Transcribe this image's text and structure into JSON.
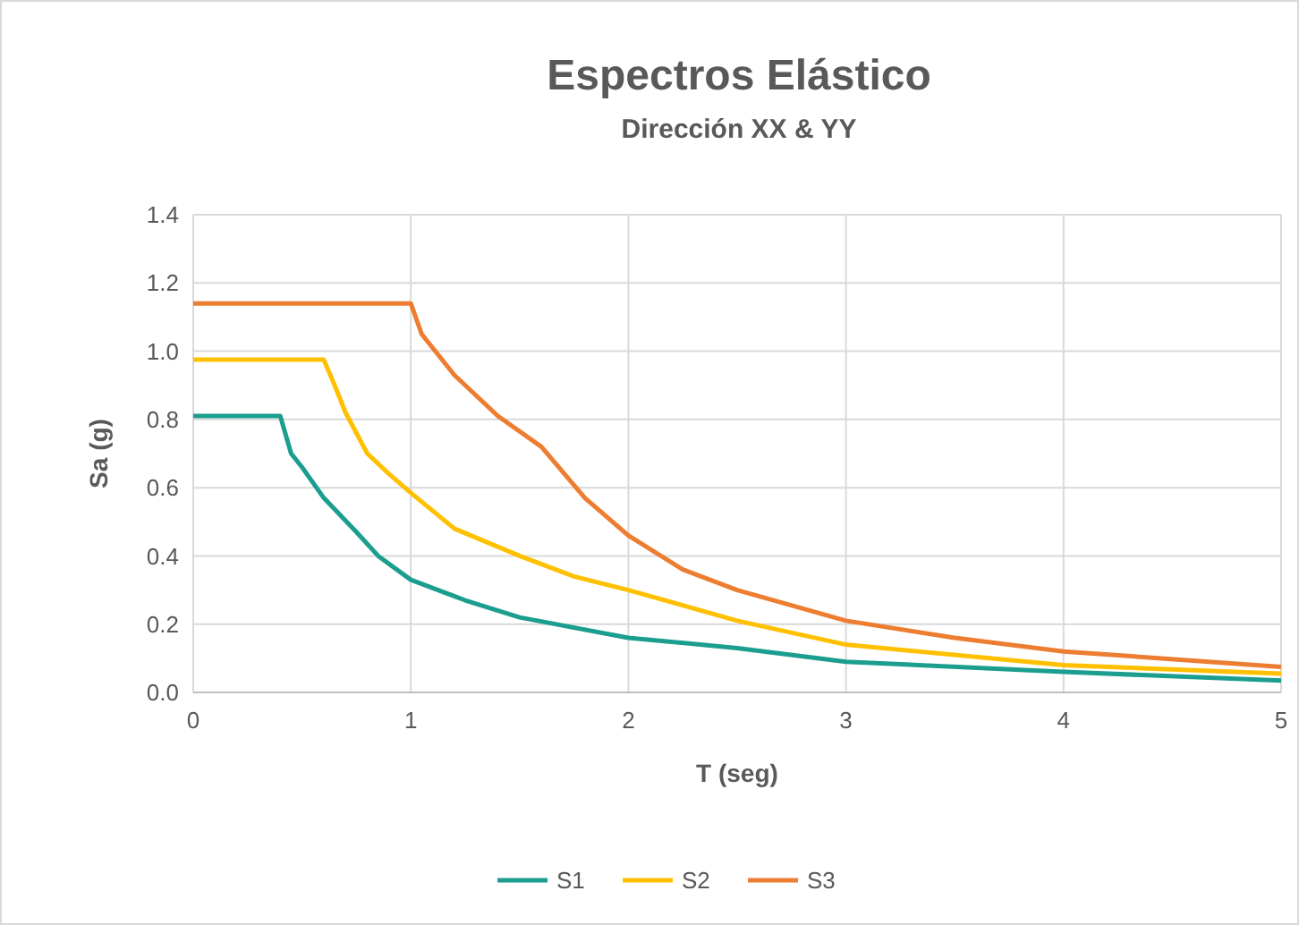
{
  "chart_data": {
    "type": "line",
    "title": "Espectros Elástico",
    "subtitle": "Dirección XX & YY",
    "xlabel": "T (seg)",
    "ylabel": "Sa (g)",
    "xlim": [
      0,
      5
    ],
    "xticks": [
      0,
      1,
      2,
      3,
      4,
      5
    ],
    "ylim": [
      0,
      1.4
    ],
    "yticks": [
      {
        "value": 0,
        "label": "0.0"
      },
      {
        "value": 0.2,
        "label": "0.2"
      },
      {
        "value": 0.4,
        "label": "0.4"
      },
      {
        "value": 0.6,
        "label": "0.6"
      },
      {
        "value": 0.8,
        "label": "0.8"
      },
      {
        "value": 1,
        "label": "1.0"
      },
      {
        "value": 1.2,
        "label": "1.2"
      },
      {
        "value": 1.4,
        "label": "1.4"
      }
    ],
    "grid": true,
    "legend": "bottom",
    "marker": "none",
    "line_style": "solid",
    "series": [
      {
        "name": "S1",
        "color": "#1b9e8f",
        "x": [
          0,
          0.4,
          0.45,
          0.5,
          0.6,
          0.75,
          0.85,
          1,
          1.25,
          1.5,
          2,
          2.5,
          3,
          4,
          5
        ],
        "values": [
          0.81,
          0.81,
          0.7,
          0.66,
          0.57,
          0.47,
          0.4,
          0.33,
          0.27,
          0.22,
          0.16,
          0.13,
          0.09,
          0.06,
          0.035
        ]
      },
      {
        "name": "S2",
        "color": "#ffc000",
        "x": [
          0,
          0.6,
          0.65,
          0.7,
          0.8,
          0.9,
          1,
          1.2,
          1.5,
          1.75,
          2,
          2.5,
          3,
          4,
          5
        ],
        "values": [
          0.975,
          0.975,
          0.9,
          0.82,
          0.7,
          0.64,
          0.585,
          0.48,
          0.4,
          0.34,
          0.3,
          0.21,
          0.14,
          0.08,
          0.055
        ]
      },
      {
        "name": "S3",
        "color": "#ed7d31",
        "x": [
          0,
          1,
          1.05,
          1.2,
          1.4,
          1.6,
          1.8,
          2,
          2.25,
          2.5,
          3,
          3.5,
          4,
          5
        ],
        "values": [
          1.14,
          1.14,
          1.05,
          0.93,
          0.81,
          0.72,
          0.57,
          0.46,
          0.36,
          0.3,
          0.21,
          0.16,
          0.12,
          0.075
        ]
      }
    ]
  }
}
